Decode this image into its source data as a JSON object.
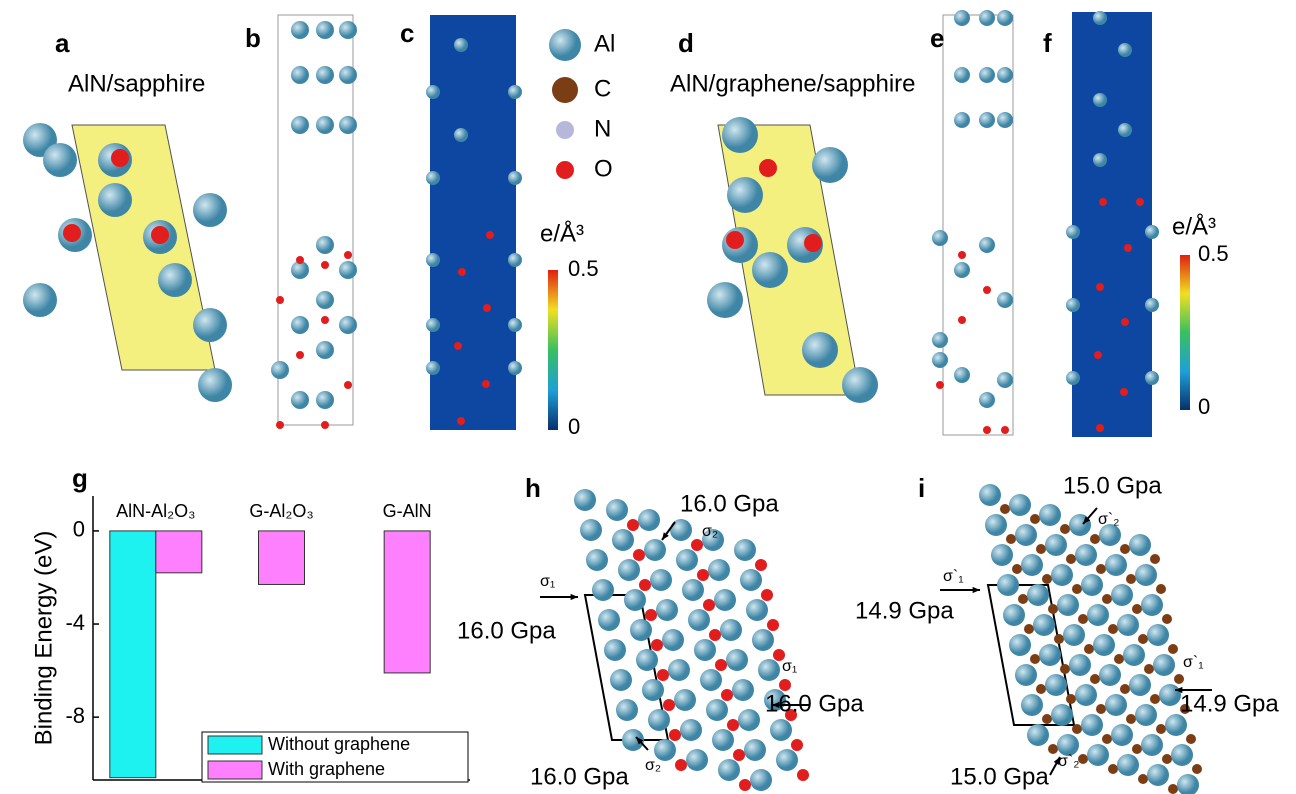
{
  "panels": {
    "a": {
      "label": "a",
      "title": "AlN/sapphire"
    },
    "b": {
      "label": "b"
    },
    "c": {
      "label": "c",
      "colorbar": {
        "unit": "e/Å³",
        "max": "0.5",
        "min": "0"
      }
    },
    "legend": [
      "Al",
      "C",
      "N",
      "O"
    ],
    "d": {
      "label": "d",
      "title": "AlN/graphene/sapphire"
    },
    "e": {
      "label": "e"
    },
    "f": {
      "label": "f",
      "colorbar": {
        "unit": "e/Å³",
        "max": "0.5",
        "min": "0"
      }
    },
    "g": {
      "label": "g"
    },
    "h": {
      "label": "h",
      "stress_top": "16.0 Gpa",
      "stress_left": "16.0 Gpa",
      "stress_right": "16.0 Gpa",
      "stress_bottom": "16.0 Gpa",
      "sigma_1_left": "σ₁",
      "sigma_1_right": "σ₁",
      "sigma_2_top": "σ₂",
      "sigma_2_bottom": "σ₂"
    },
    "i": {
      "label": "i",
      "stress_top": "15.0 Gpa",
      "stress_left": "14.9 Gpa",
      "stress_right": "14.9 Gpa",
      "stress_bottom": "15.0 Gpa",
      "sigma_1_left": "σ`₁",
      "sigma_1_right": "σ`₁",
      "sigma_2_top": "σ`₂",
      "sigma_2_bottom": "σ`₂"
    }
  },
  "chart_data": {
    "type": "bar",
    "y_label": "Binding Energy (eV)",
    "categories": [
      "AlN-Al₂O₃",
      "G-Al₂O₃",
      "G-AlN"
    ],
    "series": [
      {
        "name": "Without graphene",
        "color": "#1ef2f0",
        "values": [
          -10.6,
          null,
          null
        ]
      },
      {
        "name": "With graphene",
        "color": "#ff80ff",
        "values": [
          -1.8,
          -2.3,
          -6.1
        ]
      }
    ],
    "ylim": [
      -10.7,
      1.5
    ],
    "yticks": [
      0,
      -4,
      -8
    ],
    "legend": "lower right"
  }
}
